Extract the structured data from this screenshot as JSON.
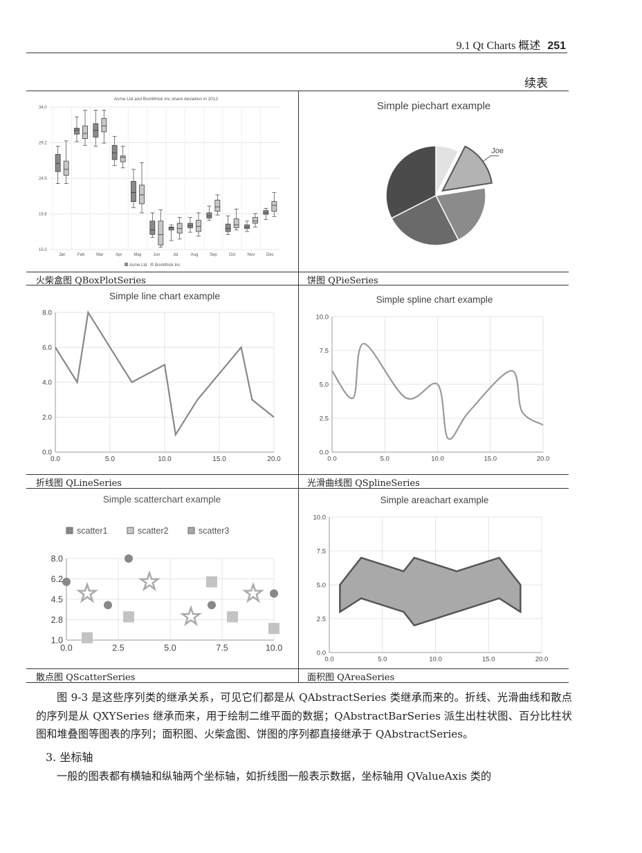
{
  "header": {
    "section": "9.1  Qt Charts 概述",
    "page_number": "251"
  },
  "table_continued_label": "续表",
  "cells": [
    {
      "caption": "火柴盒图 QBoxPlotSeries"
    },
    {
      "caption": "饼图 QPieSeries"
    },
    {
      "caption": "折线图 QLineSeries"
    },
    {
      "caption": "光滑曲线图 QSplineSeries"
    },
    {
      "caption": "散点图 QScatterSeries"
    },
    {
      "caption": "面积图 QAreaSeries"
    }
  ],
  "chart_data": [
    {
      "type": "box",
      "title": "Acme Ltd and BoxWhisk Inc share deviation in 2012",
      "categories": [
        "Jan",
        "Feb",
        "Mar",
        "Apr",
        "May",
        "Jun",
        "Jul",
        "Aug",
        "Sep",
        "Oct",
        "Nov",
        "Dec"
      ],
      "ylim": [
        15.0,
        34.0
      ],
      "yticks": [
        "34.0",
        "29.2",
        "24.5",
        "19.8",
        "15.0"
      ],
      "legend": [
        "Acme Ltd",
        "BoxWhisk Inc"
      ],
      "legend_position": "bottom",
      "series": [
        {
          "name": "Acme Ltd",
          "color": "#8a8a8a",
          "boxes": [
            [
              23.8,
              25.4,
              26.5,
              27.7,
              28.8
            ],
            [
              29.4,
              30.4,
              30.9,
              31.2,
              32.7
            ],
            [
              28.8,
              30.0,
              30.9,
              31.8,
              33.6
            ],
            [
              26.2,
              27.0,
              27.9,
              28.9,
              30.1
            ],
            [
              20.6,
              21.4,
              22.6,
              24.1,
              25.7
            ],
            [
              16.6,
              17.0,
              17.6,
              18.8,
              19.9
            ],
            [
              16.2,
              17.6,
              17.9,
              18.0,
              18.3
            ],
            [
              17.3,
              17.9,
              18.2,
              18.5,
              19.3
            ],
            [
              18.9,
              19.2,
              19.5,
              19.9,
              20.8
            ],
            [
              17.0,
              17.4,
              17.8,
              18.4,
              19.5
            ],
            [
              17.4,
              17.8,
              18.0,
              18.3,
              18.8
            ],
            [
              19.0,
              19.7,
              19.9,
              20.2,
              20.5
            ]
          ]
        },
        {
          "name": "BoxWhisk Inc",
          "color": "#c8c8c8",
          "boxes": [
            [
              23.8,
              24.9,
              25.7,
              26.8,
              29.5
            ],
            [
              28.9,
              29.8,
              30.5,
              31.5,
              33.6
            ],
            [
              29.2,
              30.7,
              31.5,
              32.5,
              33.6
            ],
            [
              25.9,
              26.7,
              27.3,
              27.5,
              28.8
            ],
            [
              19.9,
              21.1,
              22.3,
              23.6,
              26.6
            ],
            [
              15.3,
              15.6,
              17.0,
              18.8,
              20.3
            ],
            [
              16.4,
              17.2,
              17.8,
              18.5,
              19.3
            ],
            [
              16.8,
              17.4,
              18.1,
              18.9,
              19.9
            ],
            [
              19.6,
              20.1,
              20.7,
              21.6,
              22.3
            ],
            [
              17.6,
              17.9,
              18.3,
              19.1,
              20.4
            ],
            [
              18.0,
              18.5,
              18.8,
              19.3,
              19.8
            ],
            [
              19.4,
              20.1,
              20.9,
              21.4,
              22.6
            ]
          ]
        }
      ]
    },
    {
      "type": "pie",
      "title": "Simple piechart example",
      "slices": [
        {
          "value": 7.5,
          "color": "#e2e2e2",
          "exploded": false
        },
        {
          "value": 15.0,
          "label": "Joe",
          "color": "#b3b3b3",
          "exploded": true
        },
        {
          "value": 20.0,
          "color": "#8b8b8b",
          "exploded": false
        },
        {
          "value": 25.0,
          "color": "#6a6a6a",
          "exploded": false
        },
        {
          "value": 32.5,
          "color": "#4b4b4b",
          "exploded": false
        }
      ]
    },
    {
      "type": "line",
      "title": "Simple line chart example",
      "x": [
        0,
        2,
        3,
        7,
        10,
        11,
        13,
        17,
        18,
        20
      ],
      "y": [
        6,
        4,
        8,
        4,
        5,
        1,
        3,
        6,
        3,
        2
      ],
      "xlim": [
        0,
        20
      ],
      "ylim": [
        0,
        8
      ],
      "xticks": [
        "0.0",
        "5.0",
        "10.0",
        "15.0",
        "20.0"
      ],
      "yticks": [
        "0.0",
        "2.0",
        "4.0",
        "6.0",
        "8.0"
      ]
    },
    {
      "type": "spline",
      "title": "Simple spline chart example",
      "x": [
        0,
        2,
        3,
        7,
        10,
        11,
        13,
        17,
        18,
        20
      ],
      "y": [
        6,
        4,
        8,
        4,
        5,
        1,
        3,
        6,
        3,
        2
      ],
      "xlim": [
        0,
        20
      ],
      "ylim": [
        0,
        10
      ],
      "xticks": [
        "0.0",
        "5.0",
        "10.0",
        "15.0",
        "20.0"
      ],
      "yticks": [
        "0.0",
        "2.5",
        "5.0",
        "7.5",
        "10.0"
      ]
    },
    {
      "type": "scatter",
      "title": "Simple scatterchart example",
      "legend": [
        "scatter1",
        "scatter2",
        "scatter3"
      ],
      "legend_position": "top",
      "xlim": [
        0,
        10
      ],
      "ylim": [
        1,
        8
      ],
      "xticks": [
        "0.0",
        "2.5",
        "5.0",
        "7.5",
        "10.0"
      ],
      "yticks": [
        "1.0",
        "2.8",
        "4.5",
        "6.2",
        "8.0"
      ],
      "series": [
        {
          "name": "scatter1",
          "marker": "circle",
          "points": [
            [
              0,
              6
            ],
            [
              2,
              4
            ],
            [
              3,
              8
            ],
            [
              7,
              4
            ],
            [
              10,
              5
            ]
          ]
        },
        {
          "name": "scatter2",
          "marker": "square",
          "points": [
            [
              1,
              1.2
            ],
            [
              3,
              3
            ],
            [
              7,
              6
            ],
            [
              8,
              3
            ],
            [
              10,
              2
            ]
          ]
        },
        {
          "name": "scatter3",
          "marker": "star",
          "points": [
            [
              1,
              5
            ],
            [
              4,
              6
            ],
            [
              6,
              3
            ],
            [
              9,
              5
            ]
          ]
        }
      ]
    },
    {
      "type": "area",
      "title": "Simple areachart example",
      "upper": {
        "x": [
          1,
          3,
          7,
          8,
          12,
          16,
          18
        ],
        "y": [
          5,
          7,
          6,
          7,
          6,
          7,
          5
        ]
      },
      "lower": {
        "x": [
          1,
          3,
          7,
          8,
          12,
          16,
          18
        ],
        "y": [
          3,
          4,
          3,
          2,
          3,
          4,
          3
        ]
      },
      "xlim": [
        0,
        20
      ],
      "ylim": [
        0,
        10
      ],
      "xticks": [
        "0.0",
        "5.0",
        "10.0",
        "15.0",
        "20.0"
      ],
      "yticks": [
        "0.0",
        "2.5",
        "5.0",
        "7.5",
        "10.0"
      ]
    }
  ],
  "paragraphs": [
    "图 9-3 是这些序列类的继承关系，可见它们都是从 QAbstractSeries 类继承而来的。折线、光滑曲线和散点的序列是从 QXYSeries 继承而来，用于绘制二维平面的数据；QAbstractBarSeries 派生出柱状图、百分比柱状图和堆叠图等图表的序列；面积图、火柴盒图、饼图的序列都直接继承于 QAbstractSeries。",
    "一般的图表都有横轴和纵轴两个坐标轴，如折线图一般表示数据，坐标轴用 QValueAxis 类的"
  ],
  "heading": "3.  坐标轴"
}
